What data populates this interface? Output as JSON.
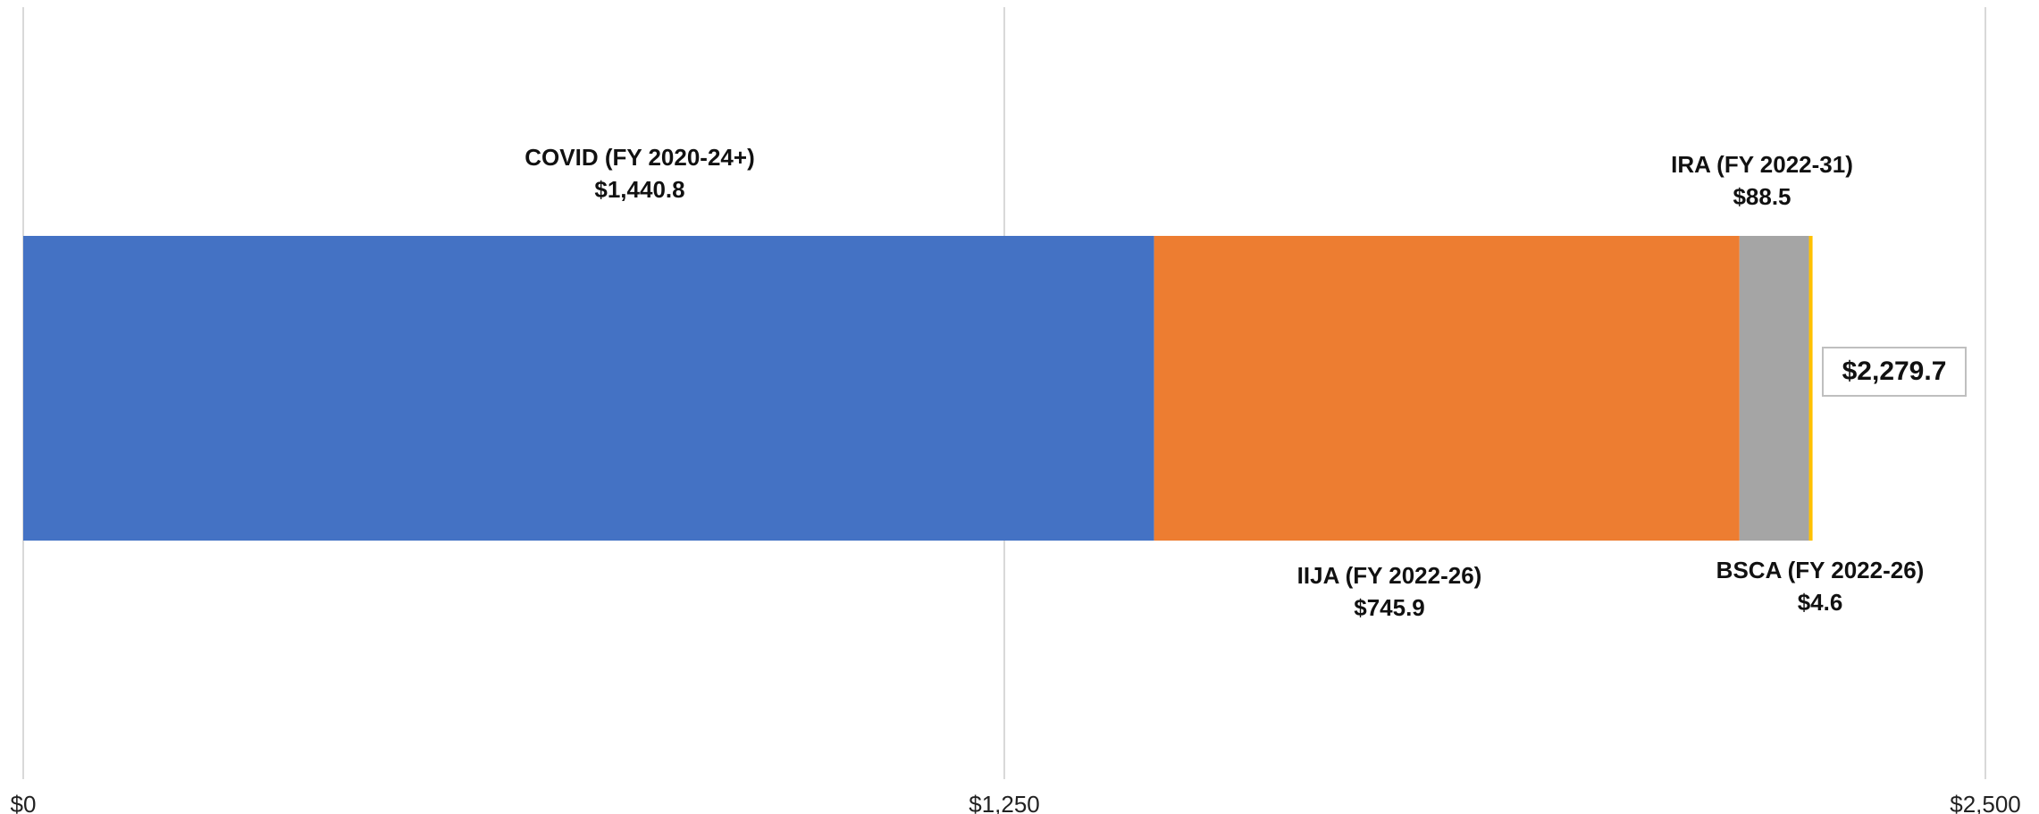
{
  "chart_data": {
    "type": "bar",
    "orientation": "horizontal",
    "stacked": true,
    "categories": [
      ""
    ],
    "series": [
      {
        "name": "COVID (FY 2020-24+)",
        "values": [
          1440.8
        ],
        "value_label": "$1,440.8",
        "color": "#4472C4",
        "label_position": "above"
      },
      {
        "name": "IIJA (FY 2022-26)",
        "values": [
          745.9
        ],
        "value_label": "$745.9",
        "color": "#ED7D31",
        "label_position": "below"
      },
      {
        "name": "IRA (FY 2022-31)",
        "values": [
          88.5
        ],
        "value_label": "$88.5",
        "color": "#A5A5A5",
        "label_position": "above"
      },
      {
        "name": "BSCA (FY 2022-26)",
        "values": [
          4.6
        ],
        "value_label": "$4.6",
        "color": "#FFC000",
        "label_position": "below"
      }
    ],
    "total": {
      "value": 2279.7,
      "label": "$2,279.7"
    },
    "xlim": [
      0,
      2500
    ],
    "xticks": [
      0,
      1250,
      2500
    ],
    "xtick_labels": [
      "$0",
      "$1,250",
      "$2,500"
    ],
    "grid": "vertical",
    "legend": "none",
    "title": "",
    "xlabel": "",
    "ylabel": ""
  }
}
